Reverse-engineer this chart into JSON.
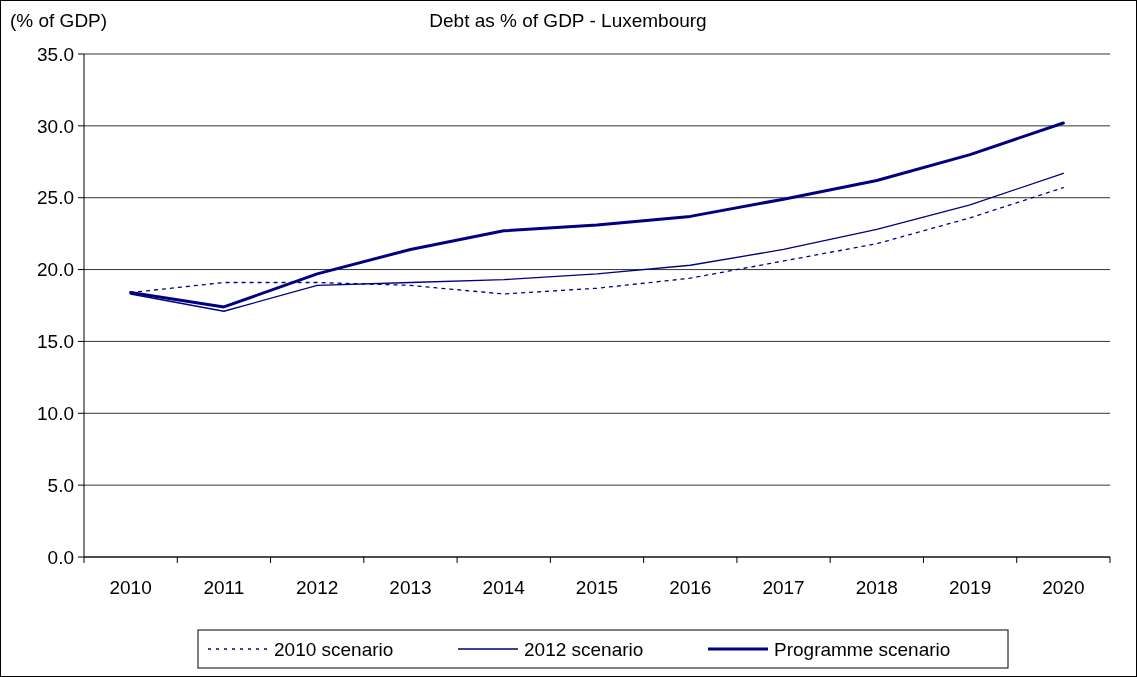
{
  "chart_data": {
    "type": "line",
    "title": "Debt as % of GDP - Luxembourg",
    "ylabel": "(% of GDP)",
    "categories": [
      "2010",
      "2011",
      "2012",
      "2013",
      "2014",
      "2015",
      "2016",
      "2017",
      "2018",
      "2019",
      "2020"
    ],
    "ylim": [
      0,
      35
    ],
    "yticks": [
      {
        "value": 0,
        "label": "0.0"
      },
      {
        "value": 5,
        "label": "5.0"
      },
      {
        "value": 10,
        "label": "10.0"
      },
      {
        "value": 15,
        "label": "15.0"
      },
      {
        "value": 20,
        "label": "20.0"
      },
      {
        "value": 25,
        "label": "25.0"
      },
      {
        "value": 30,
        "label": "30.0"
      },
      {
        "value": 35,
        "label": "35.0"
      }
    ],
    "grid": "y",
    "legend": "bottom",
    "marker": "none",
    "series": [
      {
        "name": "2010 scenario",
        "color": "#000080",
        "line_style": "dotted",
        "values": [
          18.4,
          19.1,
          19.1,
          18.9,
          18.3,
          18.7,
          19.4,
          20.6,
          21.8,
          23.6,
          25.7
        ]
      },
      {
        "name": "2012 scenario",
        "color": "#000080",
        "line_style": "solid",
        "values": [
          18.3,
          17.1,
          18.9,
          19.1,
          19.3,
          19.7,
          20.3,
          21.4,
          22.8,
          24.5,
          26.7
        ]
      },
      {
        "name": "Programme scenario",
        "color": "#000080",
        "line_style": "solid",
        "values": [
          18.4,
          17.4,
          19.7,
          21.4,
          22.7,
          23.1,
          23.7,
          24.9,
          26.2,
          28.0,
          30.2
        ]
      }
    ]
  }
}
